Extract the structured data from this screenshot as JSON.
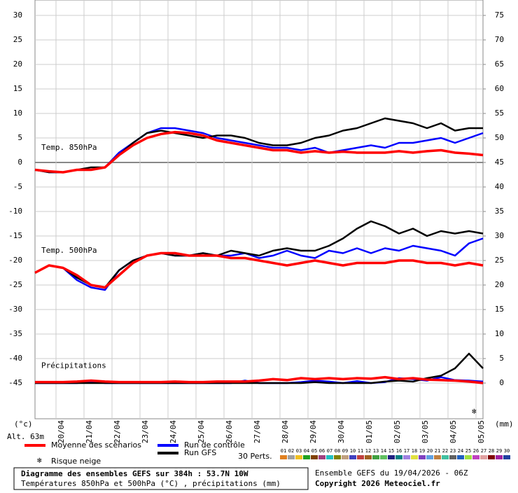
{
  "chart_data": {
    "type": "line",
    "x": [
      0,
      12,
      24,
      36,
      48,
      60,
      72,
      84,
      96,
      108,
      120,
      132,
      144,
      156,
      168,
      180,
      192,
      204,
      216,
      228,
      240,
      252,
      264,
      276,
      288,
      300,
      312,
      324,
      336,
      348,
      360,
      372,
      384
    ],
    "xlim": [
      0,
      384
    ],
    "xticks": [
      {
        "value": 18,
        "label": "20/04"
      },
      {
        "value": 42,
        "label": "21/04"
      },
      {
        "value": 66,
        "label": "22/04"
      },
      {
        "value": 90,
        "label": "23/04"
      },
      {
        "value": 114,
        "label": "24/04"
      },
      {
        "value": 138,
        "label": "25/04"
      },
      {
        "value": 162,
        "label": "26/04"
      },
      {
        "value": 186,
        "label": "27/04"
      },
      {
        "value": 210,
        "label": "28/04"
      },
      {
        "value": 234,
        "label": "29/04"
      },
      {
        "value": 258,
        "label": "30/04"
      },
      {
        "value": 282,
        "label": "01/05"
      },
      {
        "value": 306,
        "label": "02/05"
      },
      {
        "value": 330,
        "label": "03/05"
      },
      {
        "value": 354,
        "label": "04/05"
      },
      {
        "value": 378,
        "label": "05/05"
      }
    ],
    "ylim": [
      -45,
      30
    ],
    "yticks": [
      30,
      25,
      20,
      15,
      10,
      5,
      0,
      -5,
      -10,
      -15,
      -20,
      -25,
      -30,
      -35,
      -40,
      -45
    ],
    "y2lim": [
      0,
      75
    ],
    "y2ticks": [
      75,
      70,
      65,
      60,
      55,
      50,
      45,
      40,
      35,
      30,
      25,
      20,
      15,
      10,
      5,
      0
    ],
    "ylabel": "(°c)",
    "y2label": "(mm)",
    "altitude": "Alt. 63m",
    "grid": true,
    "legend": {
      "mean": {
        "name": "Moyenne des scénarios",
        "color": "#ff0000"
      },
      "control": {
        "name": "Run de contrôle",
        "color": "#0000ff"
      },
      "gfs": {
        "name": "Run GFS",
        "color": "#000000"
      },
      "snow": {
        "name": "Risque neige",
        "color": "#3399ff"
      }
    },
    "groups": [
      {
        "label": "Temp. 850hPa",
        "mean": [
          -1.5,
          -1.8,
          -2,
          -1.5,
          -1.5,
          -1,
          1.5,
          3.5,
          5,
          5.8,
          6.2,
          6,
          5.5,
          4.5,
          4,
          3.5,
          3,
          2.5,
          2.5,
          2,
          2.3,
          2,
          2.2,
          2,
          2,
          2,
          2.3,
          2,
          2.3,
          2.5,
          2,
          1.8,
          1.5
        ],
        "control": [
          -1.5,
          -2,
          -2,
          -1.5,
          -1.5,
          -1,
          2,
          4,
          6,
          7,
          7,
          6.5,
          6,
          5,
          4.5,
          4,
          3.5,
          3,
          3,
          2.5,
          3,
          2,
          2.5,
          3,
          3.5,
          3,
          4,
          4,
          4.5,
          5,
          4,
          5,
          6
        ],
        "gfs": [
          -1.5,
          -2,
          -2,
          -1.5,
          -1,
          -1,
          1.5,
          4,
          6,
          6.5,
          6,
          5.5,
          5,
          5.5,
          5.5,
          5,
          4,
          3.5,
          3.5,
          4,
          5,
          5.5,
          6.5,
          7,
          8,
          9,
          8.5,
          8,
          7,
          8,
          6.5,
          7,
          7
        ]
      },
      {
        "label": "Temp. 500hPa",
        "mean": [
          -22.5,
          -21,
          -21.5,
          -23,
          -25,
          -25.5,
          -23,
          -20.5,
          -19,
          -18.5,
          -18.5,
          -19,
          -19,
          -19,
          -19.5,
          -19.5,
          -20,
          -20.5,
          -21,
          -20.5,
          -20,
          -20.5,
          -21,
          -20.5,
          -20.5,
          -20.5,
          -20,
          -20,
          -20.5,
          -20.5,
          -21,
          -20.5,
          -21
        ],
        "control": [
          -22.5,
          -21,
          -21.5,
          -24,
          -25.5,
          -26,
          -22,
          -20,
          -19,
          -18.5,
          -19,
          -19,
          -18.5,
          -19,
          -19,
          -18.5,
          -19.5,
          -19,
          -18,
          -19,
          -19.5,
          -18,
          -18.5,
          -17.5,
          -18.5,
          -17.5,
          -18,
          -17,
          -17.5,
          -18,
          -19,
          -16.5,
          -15.5
        ],
        "gfs": [
          -22.5,
          -21,
          -21.5,
          -23.5,
          -25,
          -25.5,
          -22,
          -20,
          -19,
          -18.5,
          -19,
          -19,
          -18.5,
          -19,
          -18,
          -18.5,
          -19,
          -18,
          -17.5,
          -18,
          -18,
          -17,
          -15.5,
          -13.5,
          -12,
          -13,
          -14.5,
          -13.5,
          -15,
          -14,
          -14.5,
          -14,
          -14.5
        ]
      },
      {
        "label": "Précipitations",
        "axis": "y2",
        "mean": [
          0.2,
          0.2,
          0.2,
          0.3,
          0.5,
          0.3,
          0.2,
          0.2,
          0.2,
          0.2,
          0.3,
          0.2,
          0.2,
          0.3,
          0.3,
          0.3,
          0.5,
          0.8,
          0.6,
          1,
          0.8,
          1,
          0.8,
          1,
          0.9,
          1.2,
          0.8,
          1,
          0.7,
          0.6,
          0.5,
          0.3,
          0
        ],
        "control": [
          0,
          0,
          0,
          0,
          0.3,
          0,
          0,
          0,
          0,
          0,
          0,
          0,
          0,
          0,
          0,
          0.5,
          0,
          0,
          0,
          0.2,
          0.5,
          0.3,
          0,
          0.4,
          0,
          0.2,
          1,
          0.8,
          0.5,
          1.2,
          0.6,
          0.5,
          0.3
        ],
        "gfs": [
          0,
          0,
          0,
          0,
          0,
          0,
          0,
          0,
          0,
          0,
          0,
          0,
          0,
          0,
          0,
          0,
          0,
          0,
          0,
          0,
          0.2,
          0,
          0,
          0,
          0,
          0.3,
          0.5,
          0.3,
          1,
          1.5,
          3,
          6,
          3
        ]
      }
    ],
    "perturbations": {
      "label": "30 Perts.",
      "names": [
        "01",
        "02",
        "03",
        "04",
        "05",
        "06",
        "07",
        "08",
        "09",
        "10",
        "11",
        "12",
        "13",
        "14",
        "15",
        "16",
        "17",
        "18",
        "19",
        "20",
        "21",
        "22",
        "23",
        "24",
        "25",
        "26",
        "27",
        "28",
        "29",
        "30"
      ],
      "colors": [
        "#e08020",
        "#a0a0a0",
        "#f0c020",
        "#20a020",
        "#804000",
        "#a04080",
        "#20c0c0",
        "#808000",
        "#c0a080",
        "#4040c0",
        "#c04040",
        "#a06020",
        "#40a040",
        "#60c060",
        "#202080",
        "#008080",
        "#a080e0",
        "#e0e040",
        "#8040c0",
        "#60a0e0",
        "#c08040",
        "#40c0a0",
        "#606060",
        "#2060c0",
        "#a0e040",
        "#c040c0",
        "#e0a0a0",
        "#800000",
        "#a020a0",
        "#2040a0"
      ]
    },
    "footer": {
      "title": "Diagramme des ensembles GEFS sur 384h : 53.7N 10W",
      "subtitle": "Températures 850hPa et 500hPa (°C) , précipitations (mm)",
      "run": "Ensemble GEFS du 19/04/2026 - 06Z",
      "copyright": "Copyright 2026 Meteociel.fr"
    }
  }
}
